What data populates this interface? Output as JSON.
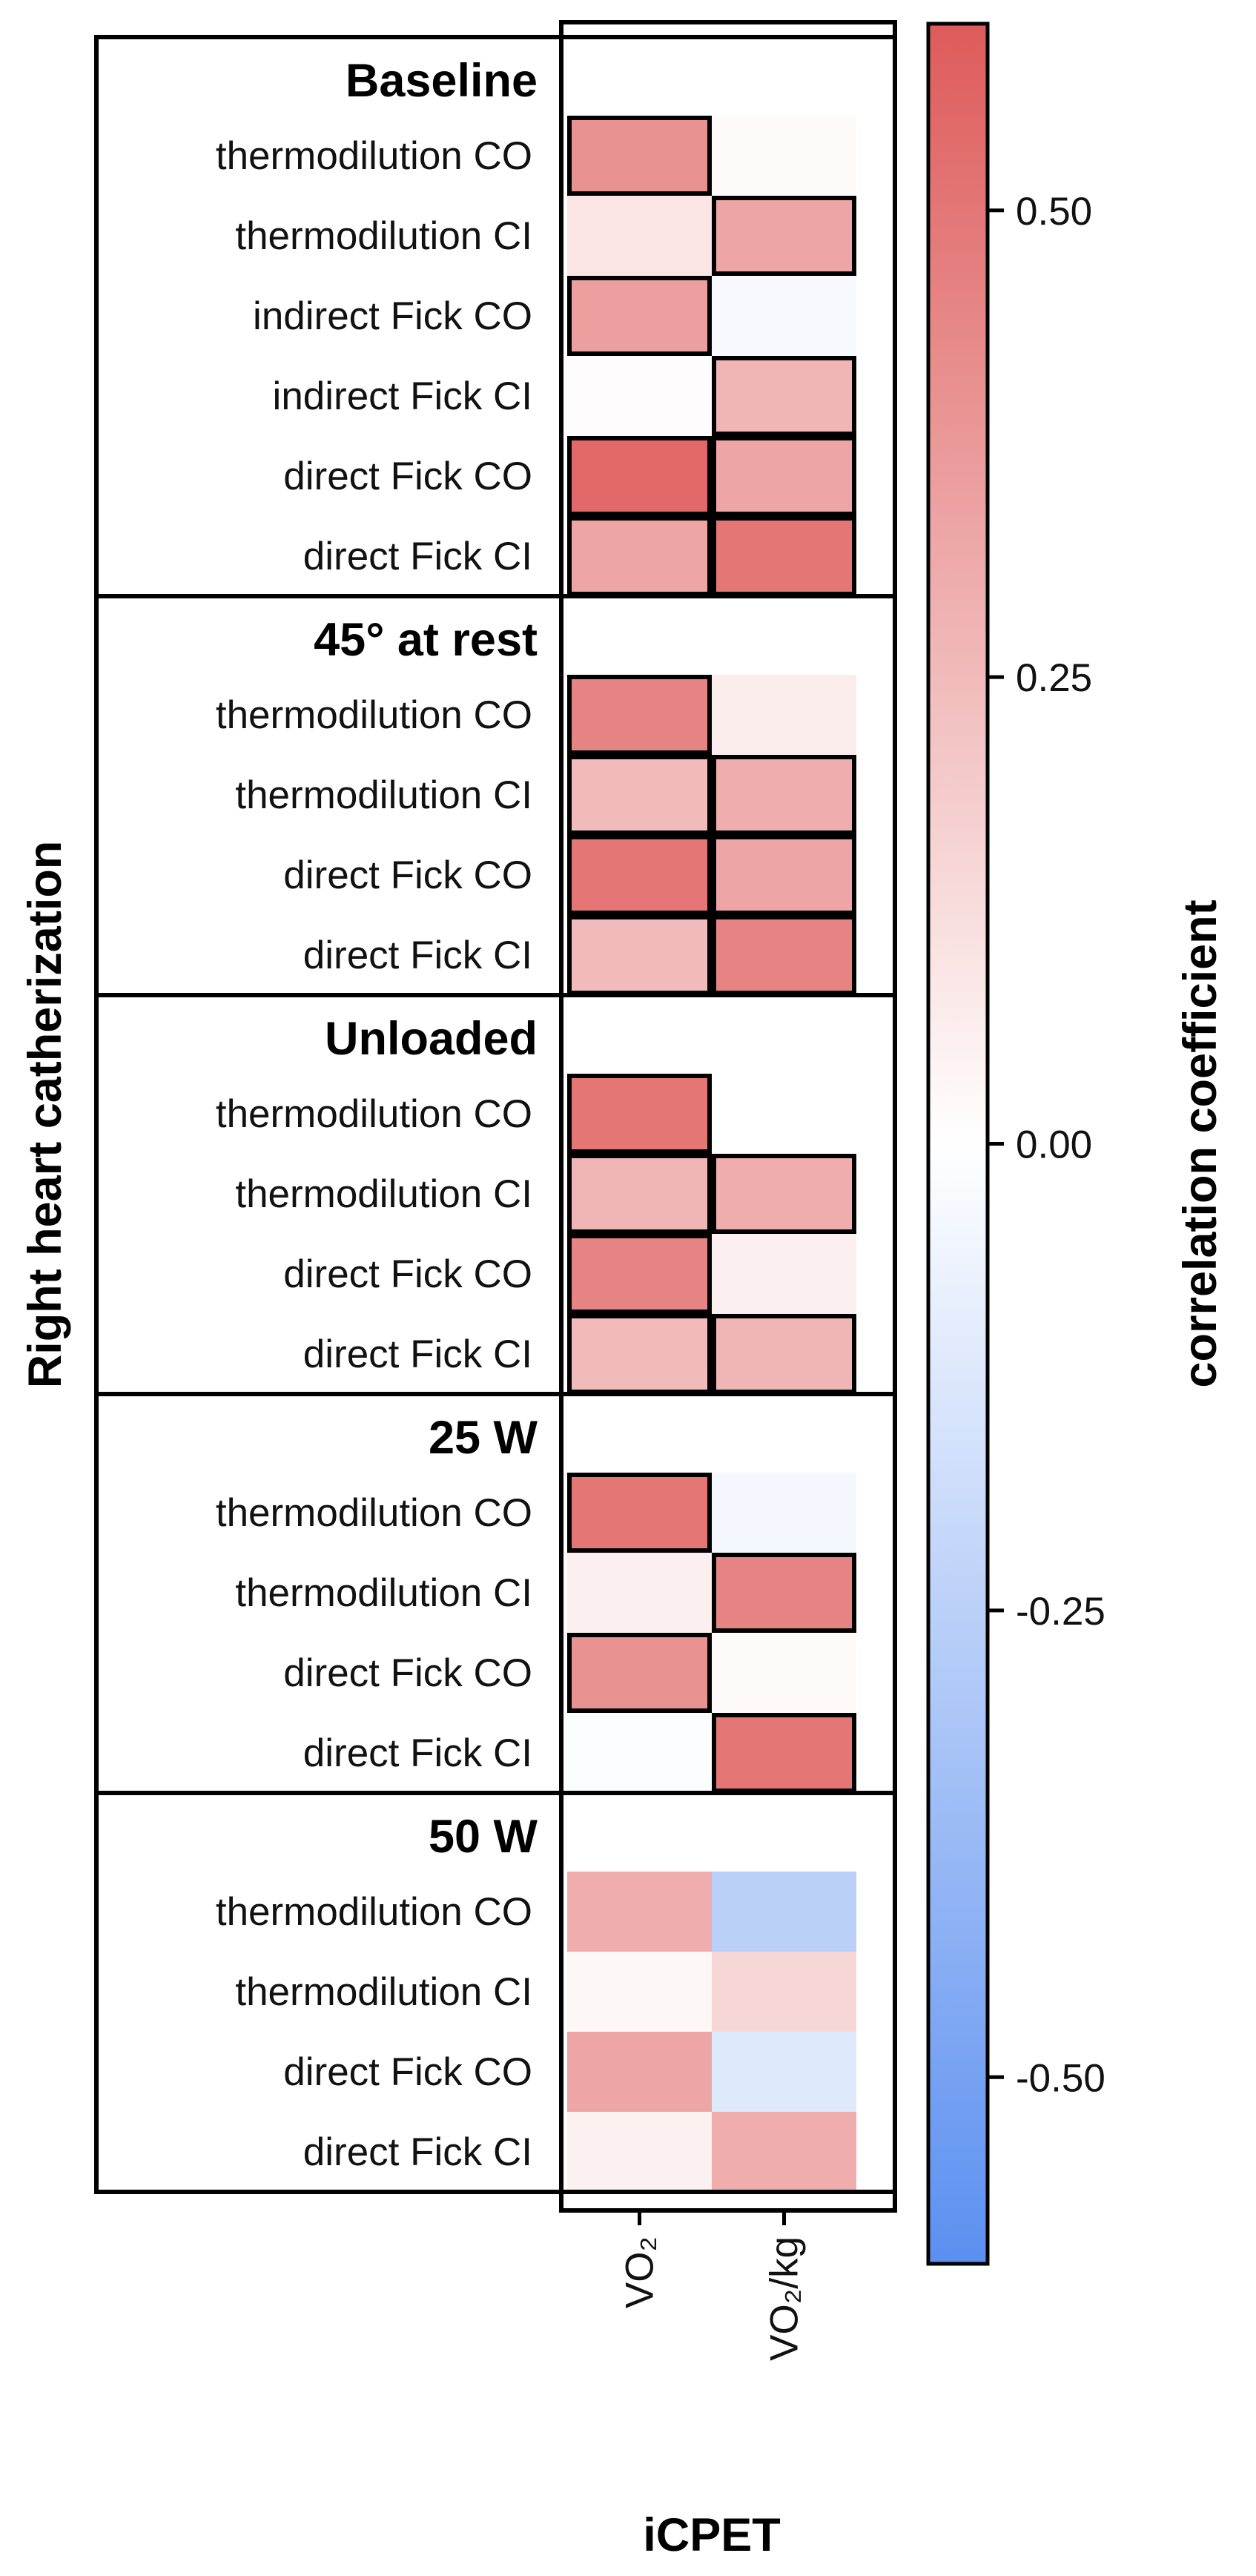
{
  "chart_data": {
    "type": "heatmap",
    "ylabel": "Right heart catherization",
    "xlabel": "iCPET",
    "columns": [
      "VO₂",
      "VO₂/kg"
    ],
    "colorbar": {
      "label": "correlation coefficient",
      "ticks": [
        0.5,
        0.25,
        0.0,
        -0.25,
        -0.5
      ],
      "tick_labels": [
        "0.50",
        "0.25",
        "0.00",
        "-0.25",
        "-0.50"
      ],
      "range": [
        -0.6,
        0.6
      ],
      "colors": {
        "negative": "#5b8ff0",
        "zero": "#ffffff",
        "positive": "#de5b5b"
      }
    },
    "groups": [
      {
        "name": "Baseline",
        "rows": [
          {
            "label": "thermodilution CO",
            "values": [
              0.4,
              0.02
            ],
            "significant": [
              true,
              false
            ]
          },
          {
            "label": "thermodilution CI",
            "values": [
              0.1,
              0.33
            ],
            "significant": [
              false,
              true
            ]
          },
          {
            "label": "indirect Fick CO",
            "values": [
              0.35,
              -0.03
            ],
            "significant": [
              true,
              false
            ]
          },
          {
            "label": "indirect Fick CI",
            "values": [
              0.01,
              0.27
            ],
            "significant": [
              false,
              true
            ]
          },
          {
            "label": "direct Fick CO",
            "values": [
              0.55,
              0.33
            ],
            "significant": [
              true,
              true
            ]
          },
          {
            "label": "direct Fick CI",
            "values": [
              0.33,
              0.5
            ],
            "significant": [
              true,
              true
            ]
          }
        ]
      },
      {
        "name": "45° at rest",
        "rows": [
          {
            "label": "thermodilution CO",
            "values": [
              0.45,
              0.07
            ],
            "significant": [
              true,
              false
            ]
          },
          {
            "label": "thermodilution CI",
            "values": [
              0.25,
              0.3
            ],
            "significant": [
              true,
              true
            ]
          },
          {
            "label": "direct Fick CO",
            "values": [
              0.5,
              0.33
            ],
            "significant": [
              true,
              true
            ]
          },
          {
            "label": "direct Fick CI",
            "values": [
              0.25,
              0.45
            ],
            "significant": [
              true,
              true
            ]
          }
        ]
      },
      {
        "name": "Unloaded",
        "rows": [
          {
            "label": "thermodilution CO",
            "values": [
              0.5,
              0.0
            ],
            "significant": [
              true,
              false
            ]
          },
          {
            "label": "thermodilution CI",
            "values": [
              0.27,
              0.3
            ],
            "significant": [
              true,
              true
            ]
          },
          {
            "label": "direct Fick CO",
            "values": [
              0.45,
              0.06
            ],
            "significant": [
              true,
              false
            ]
          },
          {
            "label": "direct Fick CI",
            "values": [
              0.25,
              0.27
            ],
            "significant": [
              true,
              true
            ]
          }
        ]
      },
      {
        "name": "25 W",
        "rows": [
          {
            "label": "thermodilution CO",
            "values": [
              0.5,
              -0.04
            ],
            "significant": [
              true,
              false
            ]
          },
          {
            "label": "thermodilution CI",
            "values": [
              0.06,
              0.45
            ],
            "significant": [
              false,
              true
            ]
          },
          {
            "label": "direct Fick CO",
            "values": [
              0.4,
              0.02
            ],
            "significant": [
              true,
              false
            ]
          },
          {
            "label": "direct Fick CI",
            "values": [
              -0.01,
              0.5
            ],
            "significant": [
              false,
              true
            ]
          }
        ]
      },
      {
        "name": "50 W",
        "rows": [
          {
            "label": "thermodilution CO",
            "values": [
              0.3,
              -0.25
            ],
            "significant": [
              false,
              false
            ]
          },
          {
            "label": "thermodilution CI",
            "values": [
              0.03,
              0.15
            ],
            "significant": [
              false,
              false
            ]
          },
          {
            "label": "direct Fick CO",
            "values": [
              0.33,
              -0.12
            ],
            "significant": [
              false,
              false
            ]
          },
          {
            "label": "direct Fick CI",
            "values": [
              0.05,
              0.3
            ],
            "significant": [
              false,
              false
            ]
          }
        ]
      }
    ]
  }
}
